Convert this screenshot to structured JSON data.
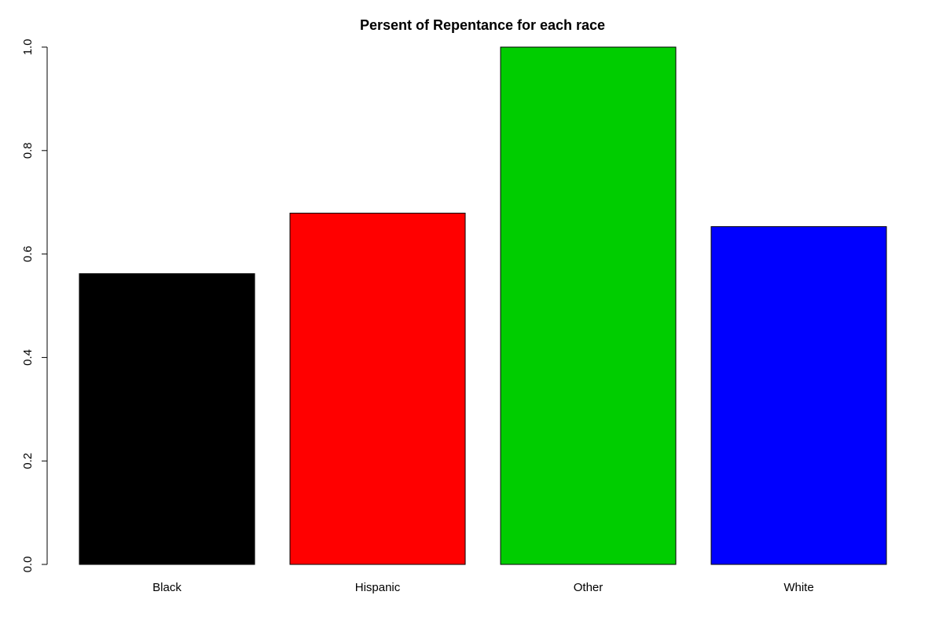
{
  "chart_data": {
    "type": "bar",
    "title": "Persent of Repentance for each race",
    "xlabel": "",
    "ylabel": "",
    "categories": [
      "Black",
      "Hispanic",
      "Other",
      "White"
    ],
    "values": [
      0.562,
      0.679,
      1.0,
      0.653
    ],
    "colors": [
      "#000000",
      "#ff0000",
      "#00cd00",
      "#0000ff"
    ],
    "ylim": [
      0,
      1.0
    ],
    "yticks": [
      "0.0",
      "0.2",
      "0.4",
      "0.6",
      "0.8",
      "1.0"
    ],
    "grid": false,
    "legend": "none"
  }
}
